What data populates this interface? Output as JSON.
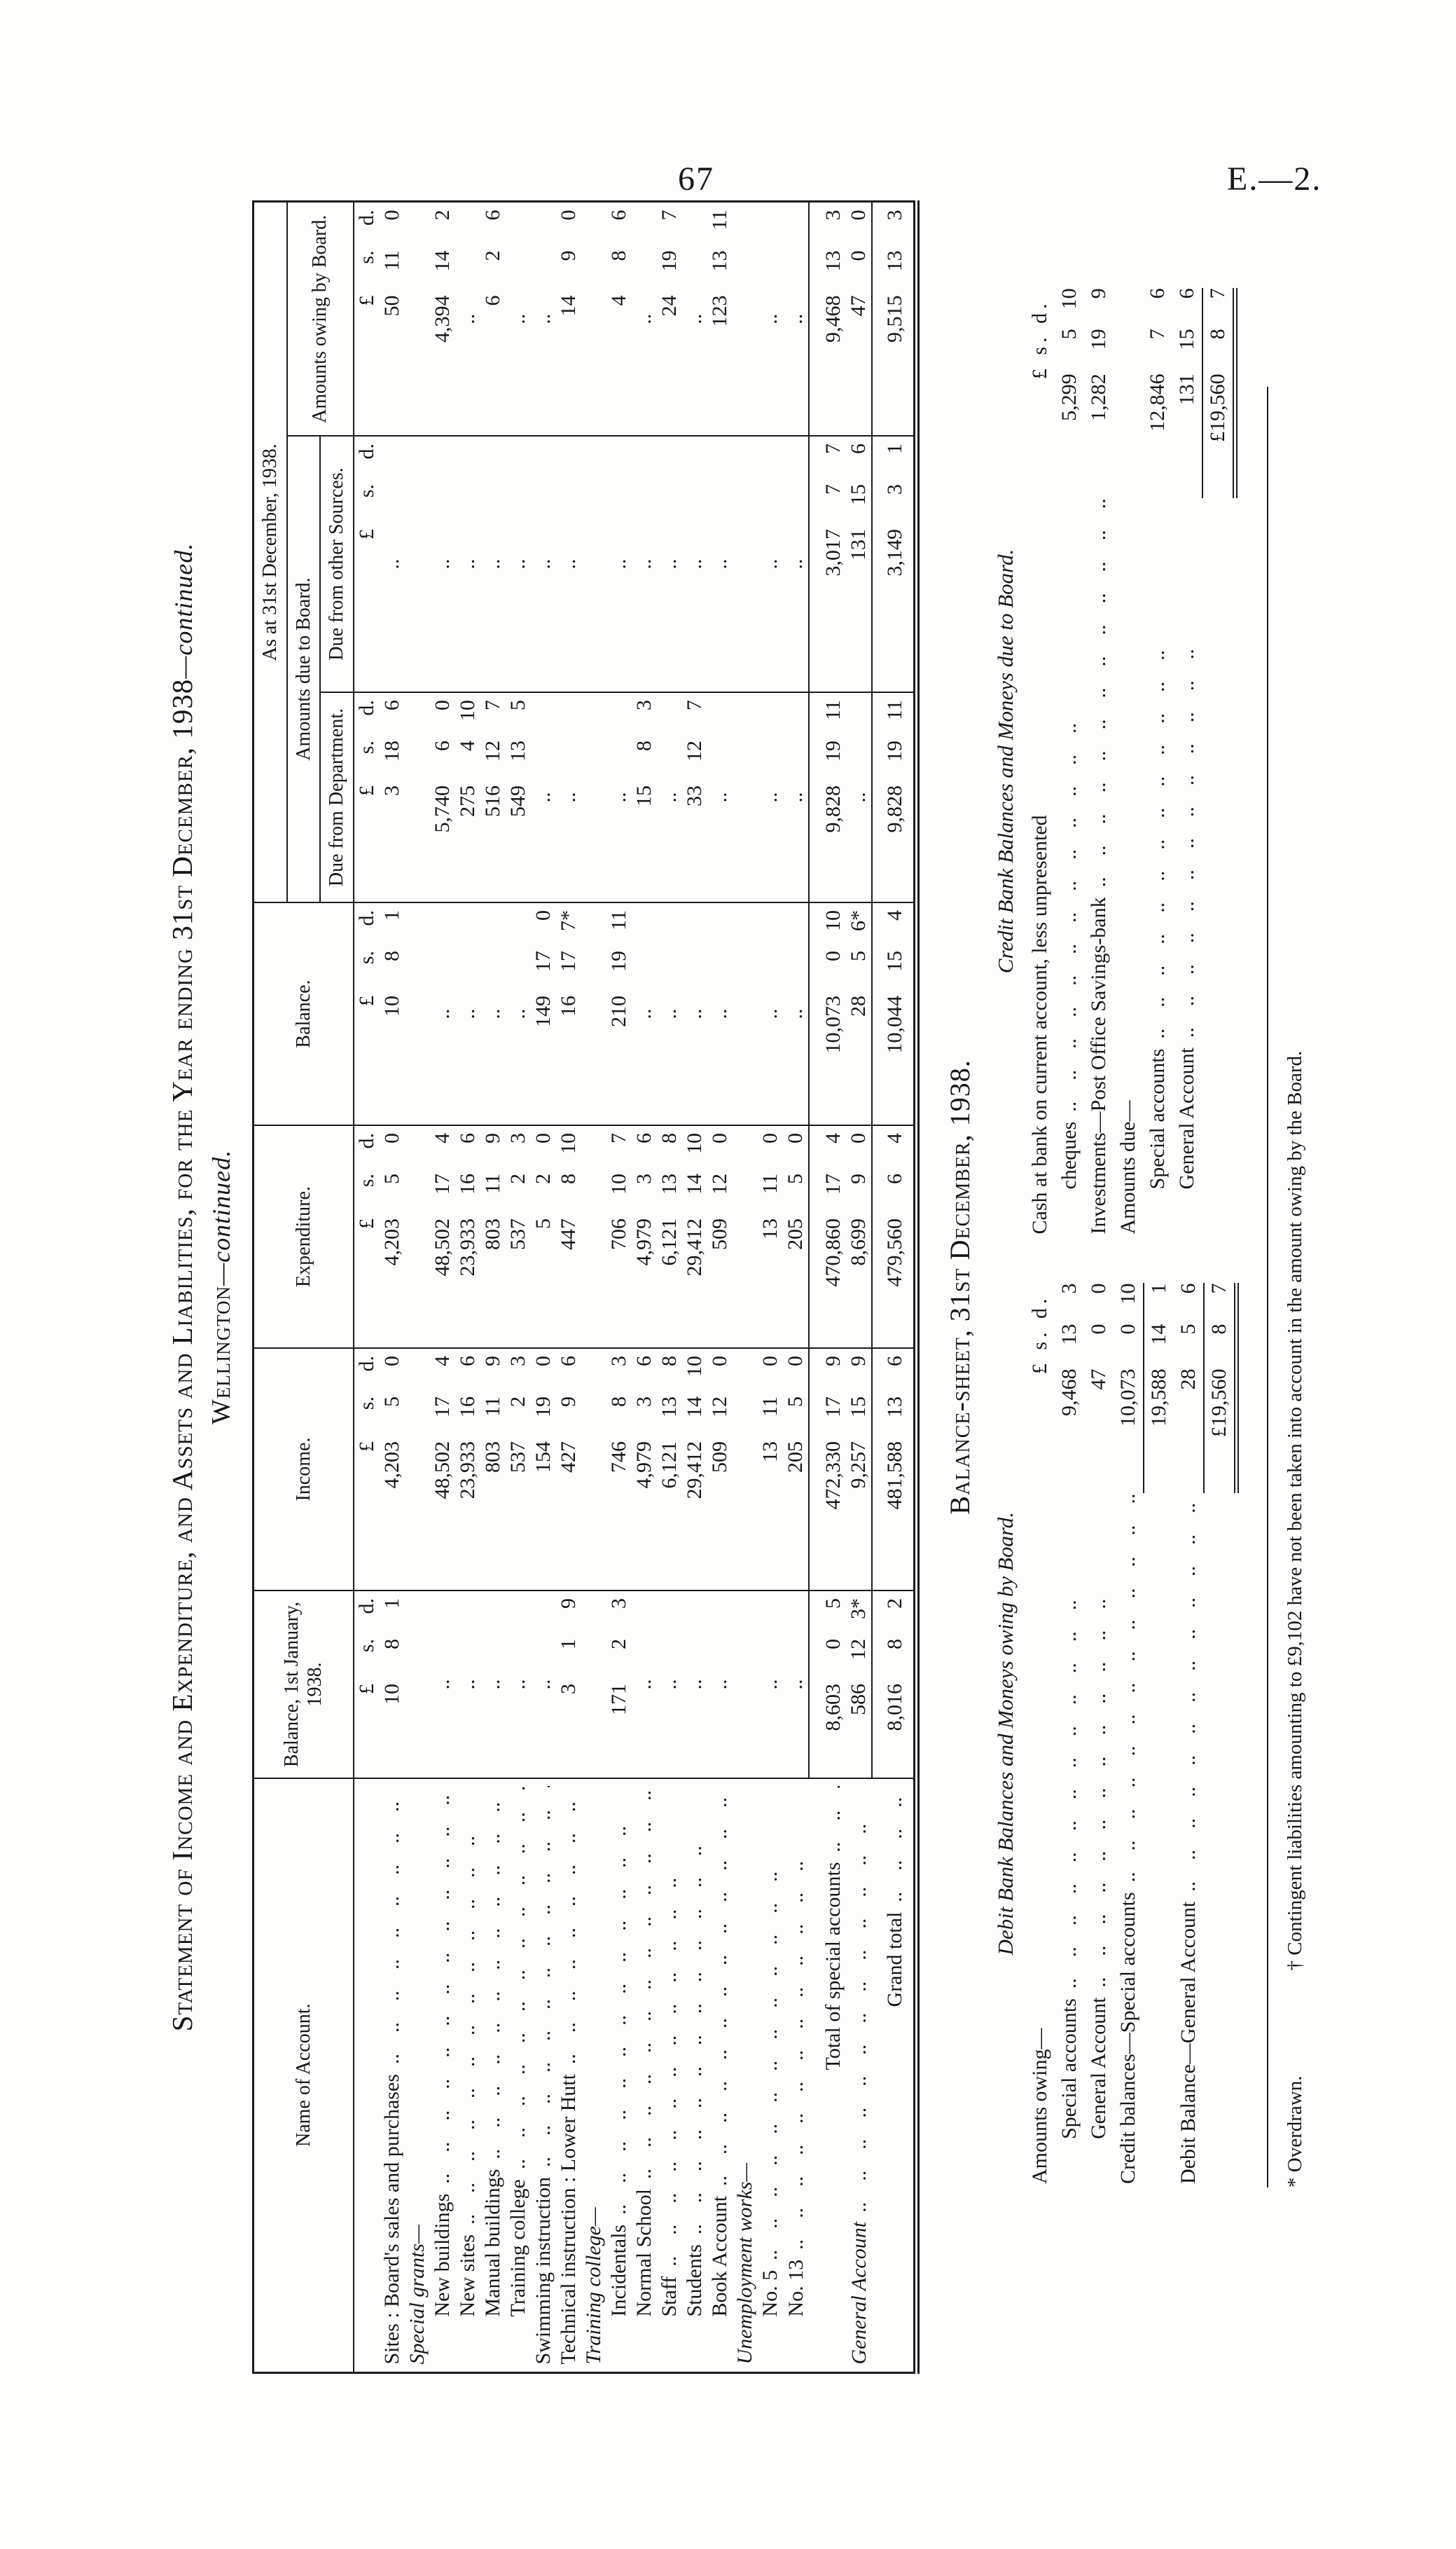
{
  "page": {
    "number": "67",
    "doc_ref": "E.—2."
  },
  "statement": {
    "title_main": "Statement of Income and Expenditure, and Assets and Liabilities, for the Year ending 31st December, 1938",
    "title_cont": "—continued.",
    "subtitle_main": "Wellington",
    "subtitle_cont": "—continued."
  },
  "table": {
    "headers": {
      "name": "Name of Account.",
      "bal_jan": "Balance, 1st January, 1938.",
      "income": "Income.",
      "expenditure": "Expenditure.",
      "balance": "Balance.",
      "as_at": "As at 31st December, 1938.",
      "due_group": "Amounts due to Board.",
      "due_dept": "Due from Department.",
      "due_other": "Due from other Sources.",
      "owing": "Amounts owing by Board."
    },
    "currency": {
      "pounds": "£",
      "shillings": "s.",
      "pence": "d."
    },
    "rows": [
      {
        "name": "Sites :  Board's sales and purchases",
        "cls": "",
        "leaders": true,
        "cells": [
          "10 8 1",
          "4,203 5 0",
          "4,203 5 0",
          "10 8 1",
          "3 18 6",
          "..",
          "50 11 0"
        ]
      },
      {
        "name": "Special grants—",
        "cls": "grouphead",
        "leaders": false,
        "cells": [
          "",
          "",
          "",
          "",
          "",
          "",
          ""
        ]
      },
      {
        "name": "New buildings",
        "cls": "r-sub",
        "leaders": true,
        "cells": [
          "..",
          "48,502 17 4",
          "48,502 17 4",
          "..",
          "5,740 6 0",
          "..",
          "4,394 14 2"
        ]
      },
      {
        "name": "New sites",
        "cls": "r-sub",
        "leaders": true,
        "cells": [
          "..",
          "23,933 16 6",
          "23,933 16 6",
          "..",
          "275 4 10",
          "..",
          ".."
        ]
      },
      {
        "name": "Manual buildings",
        "cls": "r-sub",
        "leaders": true,
        "cells": [
          "..",
          "803 11 9",
          "803 11 9",
          "..",
          "516 12 7",
          "..",
          "6 2 6"
        ]
      },
      {
        "name": "Training college",
        "cls": "r-sub",
        "leaders": true,
        "cells": [
          "..",
          "537 2 3",
          "537 2 3",
          "..",
          "549 13 5",
          "..",
          ".."
        ]
      },
      {
        "name": "Swimming instruction",
        "cls": "",
        "leaders": true,
        "cells": [
          "..",
          "154 19 0",
          "5 2 0",
          "149 17 0",
          "..",
          "..",
          ".."
        ]
      },
      {
        "name": "Technical instruction :  Lower Hutt",
        "cls": "",
        "leaders": true,
        "cells": [
          "3 1 9",
          "427 9 6",
          "447 8 10",
          "16 17 7*",
          "..",
          "..",
          "14 9 0"
        ]
      },
      {
        "name": "Training college—",
        "cls": "grouphead",
        "leaders": false,
        "cells": [
          "",
          "",
          "",
          "",
          "",
          "",
          ""
        ]
      },
      {
        "name": "Incidentals",
        "cls": "r-sub",
        "leaders": true,
        "cells": [
          "171 2 3",
          "746 8 3",
          "706 10 7",
          "210 19 11",
          "..",
          "..",
          "4 8 6"
        ]
      },
      {
        "name": "Normal School",
        "cls": "r-sub",
        "leaders": true,
        "cells": [
          "..",
          "4,979 3 6",
          "4,979 3 6",
          "..",
          "15 8 3",
          "..",
          ".."
        ]
      },
      {
        "name": "Staff",
        "cls": "r-sub",
        "leaders": true,
        "cells": [
          "..",
          "6,121 13 8",
          "6,121 13 8",
          "..",
          "..",
          "..",
          "24 19 7"
        ]
      },
      {
        "name": "Students",
        "cls": "r-sub",
        "leaders": true,
        "cells": [
          "..",
          "29,412 14 10",
          "29,412 14 10",
          "..",
          "33 12 7",
          "..",
          ".."
        ]
      },
      {
        "name": "Book Account",
        "cls": "r-sub",
        "leaders": true,
        "cells": [
          "..",
          "509 12 0",
          "509 12 0",
          "..",
          "..",
          "..",
          "123 13 11"
        ]
      },
      {
        "name": "Unemployment works—",
        "cls": "grouphead",
        "leaders": false,
        "cells": [
          "",
          "",
          "",
          "",
          "",
          "",
          ""
        ]
      },
      {
        "name": "No. 5",
        "cls": "r-sub",
        "leaders": true,
        "cells": [
          "..",
          "13 11 0",
          "13 11 0",
          "..",
          "..",
          "..",
          ".."
        ]
      },
      {
        "name": "No. 13",
        "cls": "r-sub",
        "leaders": true,
        "cells": [
          "..",
          "205 5 0",
          "205 5 0",
          "..",
          "..",
          "..",
          ".."
        ]
      },
      {
        "name": "Total of special accounts",
        "cls": "r-total",
        "indent": "ind-total",
        "leaders": true,
        "cells": [
          "8,603 0 5",
          "472,330 17 9",
          "470,860 17 4",
          "10,073 0 10",
          "9,828 19 11",
          "3,017 7 7",
          "9,468 13 3"
        ]
      },
      {
        "name": "General Account",
        "cls": "r-general",
        "leaders": true,
        "cells": [
          "586 12 3*",
          "9,257 15 9",
          "8,699 9 0",
          "28 5 6*",
          "..",
          "131 15 6",
          "47 0 0"
        ]
      },
      {
        "name": "Grand total",
        "cls": "r-grand",
        "indent": "ind-grand",
        "leaders": true,
        "cells": [
          "8,016 8 2",
          "481,588 13 6",
          "479,560 6 4",
          "10,044 15 4",
          "9,828 19 11",
          "3,149 3 1",
          "9,515 13 3"
        ]
      }
    ]
  },
  "balance_sheet": {
    "heading": "Balance-sheet, 31st December, 1938.",
    "currency_header": "£ s. d.",
    "debit": {
      "heading": "Debit Bank Balances and Moneys owing by Board.",
      "lines": [
        {
          "label": "Amounts owing—",
          "cur": true
        },
        {
          "label": "Special accounts",
          "indent": 1,
          "leaders": true,
          "amount": "9,468 13 3"
        },
        {
          "label": "General Account",
          "indent": 1,
          "leaders": true,
          "amount": "47 0 0"
        },
        {
          "label": "Credit balances—Special accounts",
          "leaders": true,
          "amount": "10,073 0 10"
        },
        {
          "rule_amount": "19,588 14 1"
        },
        {
          "label": "Debit Balance—General Account",
          "leaders": true,
          "amount": "28 5 6"
        },
        {
          "total": "£19,560 8 7"
        }
      ]
    },
    "credit": {
      "heading": "Credit Bank Balances and Moneys due to Board.",
      "lines": [
        {
          "label": "Cash at bank on current account, less unpresented",
          "cur": true
        },
        {
          "label": "cheques",
          "indent": 1,
          "leaders": true,
          "amount": "5,299 5 10"
        },
        {
          "label": "Investments—Post Office Savings-bank",
          "leaders": true,
          "amount": "1,282 19 9"
        },
        {
          "label": "Amounts due—"
        },
        {
          "label": "Special accounts",
          "indent": 1,
          "leaders": true,
          "amount": "12,846 7 6"
        },
        {
          "label": "General Account",
          "indent": 1,
          "leaders": true,
          "amount": "131 15 6"
        },
        {
          "total": "£19,560 8 7"
        }
      ]
    }
  },
  "footnotes": {
    "overdrawn": "* Overdrawn.",
    "contingent": "† Contingent liabilities amounting to £9,102 have not been taken into account in the amount owing by the Board."
  }
}
